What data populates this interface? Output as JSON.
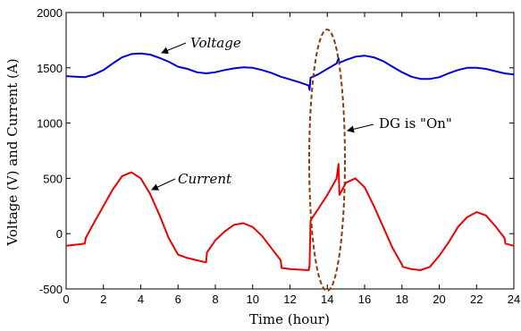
{
  "chart_data": {
    "type": "line",
    "xlabel": "Time (hour)",
    "ylabel": "Voltage (V) and Current (A)",
    "xlim": [
      0,
      24
    ],
    "ylim": [
      -500,
      2000
    ],
    "xticks": [
      0,
      2,
      4,
      6,
      8,
      10,
      12,
      14,
      16,
      18,
      20,
      22,
      24
    ],
    "yticks": [
      -500,
      0,
      500,
      1000,
      1500,
      2000
    ],
    "grid": false,
    "legend": "none",
    "series": [
      {
        "name": "Voltage",
        "color": "#0000dd",
        "x": [
          0,
          0.5,
          1,
          1.5,
          2,
          2.5,
          3,
          3.5,
          4,
          4.5,
          5,
          5.5,
          6,
          6.5,
          7,
          7.5,
          8,
          8.5,
          9,
          9.5,
          10,
          10.5,
          11,
          11.5,
          12,
          12.5,
          13,
          13.05,
          13.1,
          13.5,
          14,
          14.5,
          14.6,
          14.65,
          15,
          15.5,
          16,
          16.5,
          17,
          17.5,
          18,
          18.5,
          19,
          19.5,
          20,
          20.5,
          21,
          21.5,
          22,
          22.5,
          23,
          23.5,
          24
        ],
        "values": [
          1425,
          1420,
          1415,
          1440,
          1480,
          1540,
          1595,
          1625,
          1630,
          1620,
          1590,
          1555,
          1510,
          1490,
          1460,
          1450,
          1460,
          1480,
          1495,
          1505,
          1500,
          1480,
          1455,
          1420,
          1395,
          1370,
          1340,
          1300,
          1410,
          1440,
          1490,
          1540,
          1585,
          1545,
          1570,
          1600,
          1610,
          1595,
          1560,
          1510,
          1460,
          1420,
          1400,
          1400,
          1415,
          1450,
          1480,
          1500,
          1500,
          1490,
          1470,
          1450,
          1440
        ]
      },
      {
        "name": "Current",
        "color": "#ee0000",
        "x": [
          0,
          0.5,
          1,
          1.05,
          1.5,
          2,
          2.5,
          3,
          3.5,
          4,
          4.5,
          5,
          5.5,
          6,
          6.5,
          7,
          7.5,
          7.55,
          8,
          8.5,
          9,
          9.5,
          10,
          10.5,
          11,
          11.5,
          11.55,
          12,
          12.5,
          13,
          13.05,
          13.1,
          13.5,
          14,
          14.5,
          14.6,
          14.65,
          15,
          15.5,
          16,
          16.5,
          17,
          17.5,
          18,
          18.05,
          18.5,
          19,
          19.5,
          20,
          20.5,
          21,
          21.5,
          22,
          22.5,
          23,
          23.5,
          23.55,
          24
        ],
        "values": [
          -110,
          -100,
          -90,
          -40,
          100,
          250,
          400,
          520,
          555,
          500,
          360,
          170,
          -40,
          -190,
          -220,
          -240,
          -260,
          -170,
          -60,
          20,
          80,
          95,
          60,
          -20,
          -130,
          -240,
          -310,
          -320,
          -325,
          -330,
          -290,
          120,
          220,
          350,
          500,
          630,
          350,
          460,
          500,
          420,
          250,
          60,
          -130,
          -280,
          -300,
          -320,
          -330,
          -300,
          -200,
          -80,
          60,
          150,
          195,
          165,
          70,
          -40,
          -90,
          -110
        ]
      }
    ],
    "annotations": [
      "Voltage",
      "Current",
      "DG is \"On\""
    ]
  }
}
